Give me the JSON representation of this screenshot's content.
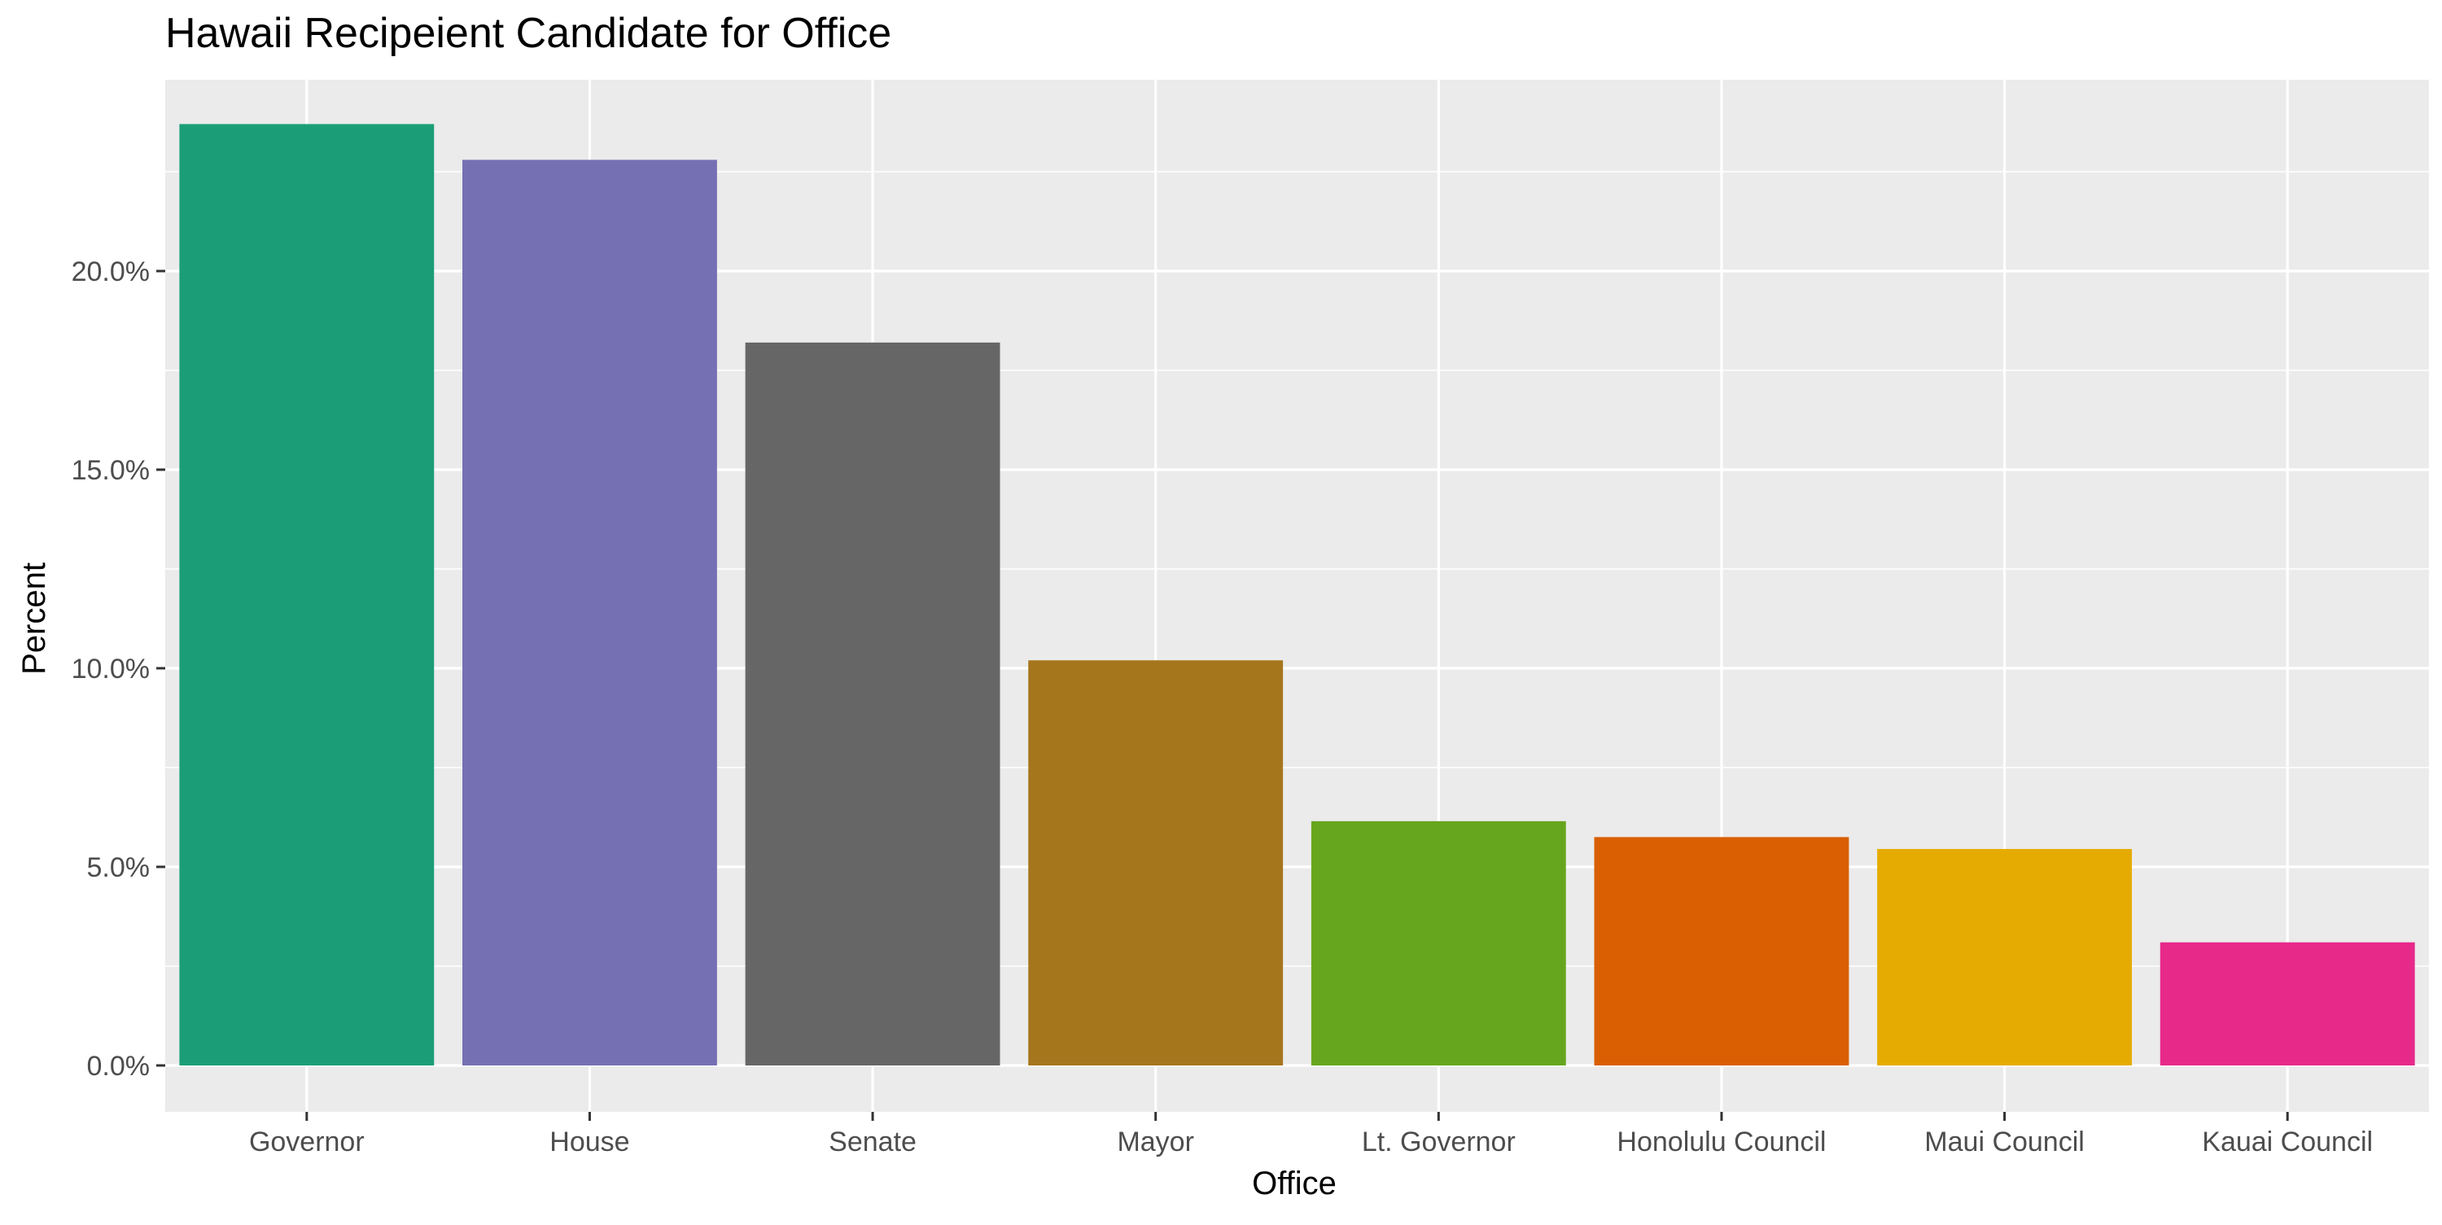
{
  "chart_data": {
    "type": "bar",
    "title": "Hawaii Recipeient Candidate for Office",
    "xlabel": "Office",
    "ylabel": "Percent",
    "categories": [
      "Governor",
      "House",
      "Senate",
      "Mayor",
      "Lt. Governor",
      "Honolulu Council",
      "Maui Council",
      "Kauai Council"
    ],
    "values": [
      23.7,
      22.8,
      18.2,
      10.2,
      6.15,
      5.75,
      5.45,
      3.1
    ],
    "colors": [
      "#1b9e77",
      "#7570b3",
      "#666666",
      "#a6761d",
      "#66a61e",
      "#d95f02",
      "#e6ab02",
      "#e7298a"
    ],
    "ylim": [
      0,
      24.6
    ],
    "yticks": [
      0,
      5,
      10,
      15,
      20
    ],
    "ytick_labels": [
      "0.0%",
      "5.0%",
      "10.0%",
      "15.0%",
      "20.0%"
    ],
    "grid": true,
    "background": "#ebebeb",
    "legend": "none"
  }
}
